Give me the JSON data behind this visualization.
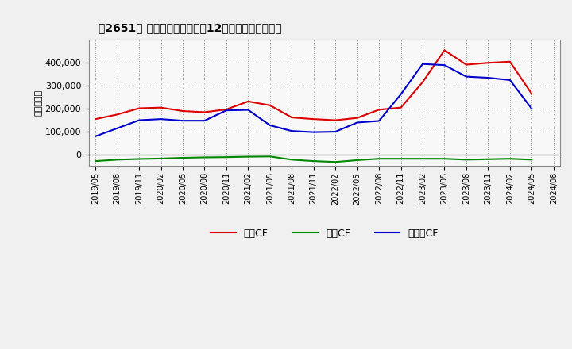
{
  "title_str": "[2651] キャッシュフローの12か月移動合計の推移",
  "ylabel": "（百万円）",
  "background_color": "#f0f0f0",
  "plot_background_color": "#f8f8f8",
  "grid_color": "#999999",
  "x_labels": [
    "2019/05",
    "2019/08",
    "2019/11",
    "2020/02",
    "2020/05",
    "2020/08",
    "2020/11",
    "2021/02",
    "2021/05",
    "2021/08",
    "2021/11",
    "2022/02",
    "2022/05",
    "2022/08",
    "2022/11",
    "2023/02",
    "2023/05",
    "2023/08",
    "2023/11",
    "2024/02",
    "2024/05",
    "2024/08"
  ],
  "operating_cf": [
    155000,
    175000,
    202000,
    205000,
    190000,
    185000,
    197000,
    232000,
    215000,
    162000,
    155000,
    150000,
    160000,
    196000,
    205000,
    316000,
    455000,
    392000,
    400000,
    405000,
    265000,
    null
  ],
  "investing_cf": [
    -28000,
    -22000,
    -19000,
    -17000,
    -14000,
    -12000,
    -11000,
    -9000,
    -8000,
    -22000,
    -28000,
    -32000,
    -24000,
    -18000,
    -18000,
    -18000,
    -18000,
    -22000,
    -20000,
    -18000,
    -22000,
    null
  ],
  "free_cf": [
    80000,
    115000,
    150000,
    155000,
    148000,
    148000,
    193000,
    195000,
    128000,
    103000,
    98000,
    100000,
    140000,
    147000,
    263000,
    395000,
    390000,
    340000,
    335000,
    325000,
    200000,
    null
  ],
  "operating_color": "#dd0000",
  "investing_color": "#008800",
  "free_color": "#0000cc",
  "ylim_min": -50000,
  "ylim_max": 500000,
  "yticks": [
    0,
    100000,
    200000,
    300000,
    400000
  ],
  "legend_labels": [
    "営業CF",
    "投資CF",
    "フリーCF"
  ]
}
